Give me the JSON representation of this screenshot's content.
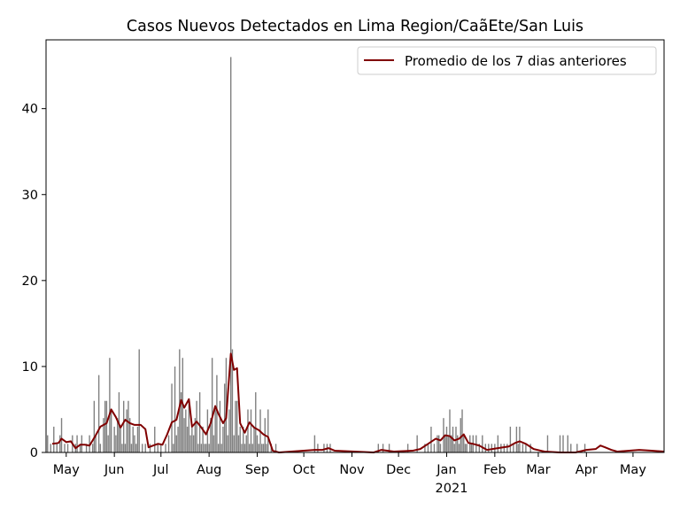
{
  "chart_data": {
    "type": "bar",
    "title": "Casos Nuevos Detectados en Lima Region/Caã\u0011Ete/San Luis",
    "xlabel": "",
    "ylabel": "",
    "ylim": [
      0,
      48
    ],
    "yticks": [
      0,
      10,
      20,
      30,
      40
    ],
    "xlim": [
      "2020-04-18",
      "2021-05-21"
    ],
    "xticks": [
      {
        "date": "2020-05-01",
        "label": "May"
      },
      {
        "date": "2020-06-01",
        "label": "Jun"
      },
      {
        "date": "2020-07-01",
        "label": "Jul"
      },
      {
        "date": "2020-08-01",
        "label": "Aug"
      },
      {
        "date": "2020-09-01",
        "label": "Sep"
      },
      {
        "date": "2020-10-01",
        "label": "Oct"
      },
      {
        "date": "2020-11-01",
        "label": "Nov"
      },
      {
        "date": "2020-12-01",
        "label": "Dec"
      },
      {
        "date": "2021-01-01",
        "label": "Jan"
      },
      {
        "date": "2021-02-01",
        "label": "Feb"
      },
      {
        "date": "2021-03-01",
        "label": "Mar"
      },
      {
        "date": "2021-04-01",
        "label": "Apr"
      },
      {
        "date": "2021-05-01",
        "label": "May"
      }
    ],
    "year_label": "2021",
    "grid": false,
    "legend": {
      "position": "top-right",
      "entries": [
        "Promedio de los 7 dias anteriores"
      ]
    },
    "colors": {
      "bars": "#808080",
      "line": "#800000"
    },
    "bars": [
      [
        "2020-04-19",
        2
      ],
      [
        "2020-04-21",
        1
      ],
      [
        "2020-04-23",
        3
      ],
      [
        "2020-04-25",
        1
      ],
      [
        "2020-04-27",
        2
      ],
      [
        "2020-04-28",
        4
      ],
      [
        "2020-04-30",
        1
      ],
      [
        "2020-05-02",
        1
      ],
      [
        "2020-05-05",
        2
      ],
      [
        "2020-05-07",
        1
      ],
      [
        "2020-05-08",
        2
      ],
      [
        "2020-05-10",
        1
      ],
      [
        "2020-05-11",
        2
      ],
      [
        "2020-05-14",
        1
      ],
      [
        "2020-05-16",
        2
      ],
      [
        "2020-05-18",
        1
      ],
      [
        "2020-05-19",
        6
      ],
      [
        "2020-05-20",
        2
      ],
      [
        "2020-05-22",
        9
      ],
      [
        "2020-05-23",
        1
      ],
      [
        "2020-05-25",
        4
      ],
      [
        "2020-05-26",
        6
      ],
      [
        "2020-05-27",
        6
      ],
      [
        "2020-05-28",
        2
      ],
      [
        "2020-05-29",
        11
      ],
      [
        "2020-05-30",
        5
      ],
      [
        "2020-06-01",
        3
      ],
      [
        "2020-06-02",
        2
      ],
      [
        "2020-06-03",
        4
      ],
      [
        "2020-06-04",
        7
      ],
      [
        "2020-06-05",
        3
      ],
      [
        "2020-06-06",
        1
      ],
      [
        "2020-06-07",
        6
      ],
      [
        "2020-06-08",
        1
      ],
      [
        "2020-06-09",
        5
      ],
      [
        "2020-06-10",
        6
      ],
      [
        "2020-06-11",
        4
      ],
      [
        "2020-06-12",
        1
      ],
      [
        "2020-06-13",
        3
      ],
      [
        "2020-06-14",
        2
      ],
      [
        "2020-06-15",
        1
      ],
      [
        "2020-06-16",
        3
      ],
      [
        "2020-06-17",
        12
      ],
      [
        "2020-06-19",
        1
      ],
      [
        "2020-06-21",
        1
      ],
      [
        "2020-06-24",
        1
      ],
      [
        "2020-06-27",
        3
      ],
      [
        "2020-06-29",
        1
      ],
      [
        "2020-07-01",
        1
      ],
      [
        "2020-07-04",
        1
      ],
      [
        "2020-07-06",
        2
      ],
      [
        "2020-07-08",
        8
      ],
      [
        "2020-07-09",
        1
      ],
      [
        "2020-07-10",
        10
      ],
      [
        "2020-07-11",
        2
      ],
      [
        "2020-07-12",
        3
      ],
      [
        "2020-07-13",
        12
      ],
      [
        "2020-07-14",
        7
      ],
      [
        "2020-07-15",
        11
      ],
      [
        "2020-07-16",
        4
      ],
      [
        "2020-07-17",
        5
      ],
      [
        "2020-07-18",
        3
      ],
      [
        "2020-07-19",
        6
      ],
      [
        "2020-07-20",
        2
      ],
      [
        "2020-07-21",
        3
      ],
      [
        "2020-07-22",
        2
      ],
      [
        "2020-07-23",
        4
      ],
      [
        "2020-07-24",
        6
      ],
      [
        "2020-07-25",
        1
      ],
      [
        "2020-07-26",
        7
      ],
      [
        "2020-07-27",
        1
      ],
      [
        "2020-07-28",
        3
      ],
      [
        "2020-07-29",
        1
      ],
      [
        "2020-07-30",
        1
      ],
      [
        "2020-07-31",
        5
      ],
      [
        "2020-08-01",
        1
      ],
      [
        "2020-08-02",
        4
      ],
      [
        "2020-08-03",
        11
      ],
      [
        "2020-08-04",
        2
      ],
      [
        "2020-08-05",
        5
      ],
      [
        "2020-08-06",
        9
      ],
      [
        "2020-08-07",
        1
      ],
      [
        "2020-08-08",
        6
      ],
      [
        "2020-08-09",
        1
      ],
      [
        "2020-08-10",
        3
      ],
      [
        "2020-08-11",
        8
      ],
      [
        "2020-08-12",
        11
      ],
      [
        "2020-08-13",
        2
      ],
      [
        "2020-08-14",
        5
      ],
      [
        "2020-08-15",
        46
      ],
      [
        "2020-08-16",
        12
      ],
      [
        "2020-08-17",
        2
      ],
      [
        "2020-08-18",
        6
      ],
      [
        "2020-08-19",
        6
      ],
      [
        "2020-08-20",
        2
      ],
      [
        "2020-08-21",
        3
      ],
      [
        "2020-08-22",
        1
      ],
      [
        "2020-08-23",
        3
      ],
      [
        "2020-08-24",
        1
      ],
      [
        "2020-08-25",
        2
      ],
      [
        "2020-08-26",
        5
      ],
      [
        "2020-08-27",
        1
      ],
      [
        "2020-08-28",
        5
      ],
      [
        "2020-08-29",
        1
      ],
      [
        "2020-08-30",
        3
      ],
      [
        "2020-08-31",
        7
      ],
      [
        "2020-09-01",
        2
      ],
      [
        "2020-09-02",
        1
      ],
      [
        "2020-09-03",
        5
      ],
      [
        "2020-09-04",
        1
      ],
      [
        "2020-09-05",
        1
      ],
      [
        "2020-09-06",
        4
      ],
      [
        "2020-09-07",
        1
      ],
      [
        "2020-09-08",
        5
      ],
      [
        "2020-09-10",
        1
      ],
      [
        "2020-09-13",
        1
      ],
      [
        "2020-10-08",
        2
      ],
      [
        "2020-10-10",
        1
      ],
      [
        "2020-10-14",
        1
      ],
      [
        "2020-10-16",
        1
      ],
      [
        "2020-10-18",
        1
      ],
      [
        "2020-11-18",
        1
      ],
      [
        "2020-11-21",
        1
      ],
      [
        "2020-11-25",
        1
      ],
      [
        "2020-12-07",
        1
      ],
      [
        "2020-12-13",
        2
      ],
      [
        "2020-12-18",
        1
      ],
      [
        "2020-12-20",
        1
      ],
      [
        "2020-12-22",
        3
      ],
      [
        "2020-12-24",
        1
      ],
      [
        "2020-12-26",
        2
      ],
      [
        "2020-12-27",
        2
      ],
      [
        "2020-12-28",
        1
      ],
      [
        "2020-12-30",
        4
      ],
      [
        "2020-12-31",
        2
      ],
      [
        "2021-01-01",
        3
      ],
      [
        "2021-01-02",
        2
      ],
      [
        "2021-01-03",
        5
      ],
      [
        "2021-01-04",
        2
      ],
      [
        "2021-01-05",
        3
      ],
      [
        "2021-01-06",
        1
      ],
      [
        "2021-01-07",
        3
      ],
      [
        "2021-01-08",
        2
      ],
      [
        "2021-01-09",
        1
      ],
      [
        "2021-01-10",
        4
      ],
      [
        "2021-01-11",
        5
      ],
      [
        "2021-01-12",
        2
      ],
      [
        "2021-01-13",
        1
      ],
      [
        "2021-01-14",
        1
      ],
      [
        "2021-01-16",
        2
      ],
      [
        "2021-01-17",
        1
      ],
      [
        "2021-01-18",
        2
      ],
      [
        "2021-01-20",
        2
      ],
      [
        "2021-01-22",
        1
      ],
      [
        "2021-01-24",
        2
      ],
      [
        "2021-01-26",
        1
      ],
      [
        "2021-01-28",
        1
      ],
      [
        "2021-01-30",
        1
      ],
      [
        "2021-02-01",
        1
      ],
      [
        "2021-02-03",
        2
      ],
      [
        "2021-02-05",
        1
      ],
      [
        "2021-02-07",
        1
      ],
      [
        "2021-02-09",
        1
      ],
      [
        "2021-02-11",
        3
      ],
      [
        "2021-02-13",
        1
      ],
      [
        "2021-02-15",
        3
      ],
      [
        "2021-02-16",
        1
      ],
      [
        "2021-02-17",
        3
      ],
      [
        "2021-02-19",
        1
      ],
      [
        "2021-02-21",
        1
      ],
      [
        "2021-02-24",
        1
      ],
      [
        "2021-03-07",
        2
      ],
      [
        "2021-03-15",
        2
      ],
      [
        "2021-03-17",
        2
      ],
      [
        "2021-03-20",
        2
      ],
      [
        "2021-03-22",
        1
      ],
      [
        "2021-03-26",
        1
      ],
      [
        "2021-03-31",
        1
      ]
    ],
    "rolling_average": [
      [
        "2020-04-22",
        1.0
      ],
      [
        "2020-04-26",
        1.1
      ],
      [
        "2020-04-28",
        1.6
      ],
      [
        "2020-05-01",
        1.2
      ],
      [
        "2020-05-04",
        1.3
      ],
      [
        "2020-05-07",
        0.5
      ],
      [
        "2020-05-10",
        0.9
      ],
      [
        "2020-05-13",
        0.9
      ],
      [
        "2020-05-16",
        0.8
      ],
      [
        "2020-05-20",
        2.0
      ],
      [
        "2020-05-23",
        3.0
      ],
      [
        "2020-05-27",
        3.4
      ],
      [
        "2020-05-30",
        5.0
      ],
      [
        "2020-06-02",
        4.1
      ],
      [
        "2020-06-05",
        2.9
      ],
      [
        "2020-06-08",
        3.8
      ],
      [
        "2020-06-11",
        3.4
      ],
      [
        "2020-06-14",
        3.2
      ],
      [
        "2020-06-18",
        3.2
      ],
      [
        "2020-06-21",
        2.7
      ],
      [
        "2020-06-23",
        0.6
      ],
      [
        "2020-06-26",
        0.8
      ],
      [
        "2020-06-29",
        1.0
      ],
      [
        "2020-07-02",
        0.9
      ],
      [
        "2020-07-05",
        2.1
      ],
      [
        "2020-07-08",
        3.5
      ],
      [
        "2020-07-11",
        3.8
      ],
      [
        "2020-07-14",
        6.1
      ],
      [
        "2020-07-16",
        5.2
      ],
      [
        "2020-07-19",
        6.2
      ],
      [
        "2020-07-21",
        3.0
      ],
      [
        "2020-07-24",
        3.6
      ],
      [
        "2020-07-27",
        2.9
      ],
      [
        "2020-07-30",
        2.1
      ],
      [
        "2020-08-02",
        3.4
      ],
      [
        "2020-08-05",
        5.4
      ],
      [
        "2020-08-07",
        4.5
      ],
      [
        "2020-08-10",
        3.4
      ],
      [
        "2020-08-12",
        4.0
      ],
      [
        "2020-08-15",
        11.5
      ],
      [
        "2020-08-17",
        9.6
      ],
      [
        "2020-08-19",
        9.8
      ],
      [
        "2020-08-21",
        3.4
      ],
      [
        "2020-08-24",
        2.3
      ],
      [
        "2020-08-27",
        3.5
      ],
      [
        "2020-08-30",
        2.9
      ],
      [
        "2020-09-02",
        2.6
      ],
      [
        "2020-09-05",
        2.1
      ],
      [
        "2020-09-08",
        1.8
      ],
      [
        "2020-09-11",
        0.2
      ],
      [
        "2020-09-15",
        0.0
      ],
      [
        "2020-10-08",
        0.3
      ],
      [
        "2020-10-13",
        0.3
      ],
      [
        "2020-10-17",
        0.5
      ],
      [
        "2020-10-21",
        0.2
      ],
      [
        "2020-11-15",
        0.0
      ],
      [
        "2020-11-20",
        0.3
      ],
      [
        "2020-11-28",
        0.1
      ],
      [
        "2020-12-10",
        0.2
      ],
      [
        "2020-12-15",
        0.4
      ],
      [
        "2020-12-20",
        1.0
      ],
      [
        "2020-12-25",
        1.6
      ],
      [
        "2020-12-28",
        1.4
      ],
      [
        "2020-12-31",
        2.0
      ],
      [
        "2021-01-03",
        1.9
      ],
      [
        "2021-01-06",
        1.4
      ],
      [
        "2021-01-09",
        1.6
      ],
      [
        "2021-01-12",
        2.1
      ],
      [
        "2021-01-15",
        1.1
      ],
      [
        "2021-01-18",
        1.0
      ],
      [
        "2021-01-22",
        0.8
      ],
      [
        "2021-01-27",
        0.3
      ],
      [
        "2021-02-03",
        0.5
      ],
      [
        "2021-02-10",
        0.7
      ],
      [
        "2021-02-14",
        1.1
      ],
      [
        "2021-02-17",
        1.3
      ],
      [
        "2021-02-21",
        1.0
      ],
      [
        "2021-02-26",
        0.4
      ],
      [
        "2021-03-05",
        0.1
      ],
      [
        "2021-03-15",
        0.0
      ],
      [
        "2021-03-25",
        0.0
      ],
      [
        "2021-04-01",
        0.3
      ],
      [
        "2021-04-07",
        0.4
      ],
      [
        "2021-04-10",
        0.8
      ],
      [
        "2021-04-13",
        0.6
      ],
      [
        "2021-04-17",
        0.3
      ],
      [
        "2021-04-21",
        0.1
      ],
      [
        "2021-05-05",
        0.3
      ],
      [
        "2021-05-13",
        0.2
      ],
      [
        "2021-05-21",
        0.1
      ]
    ]
  }
}
